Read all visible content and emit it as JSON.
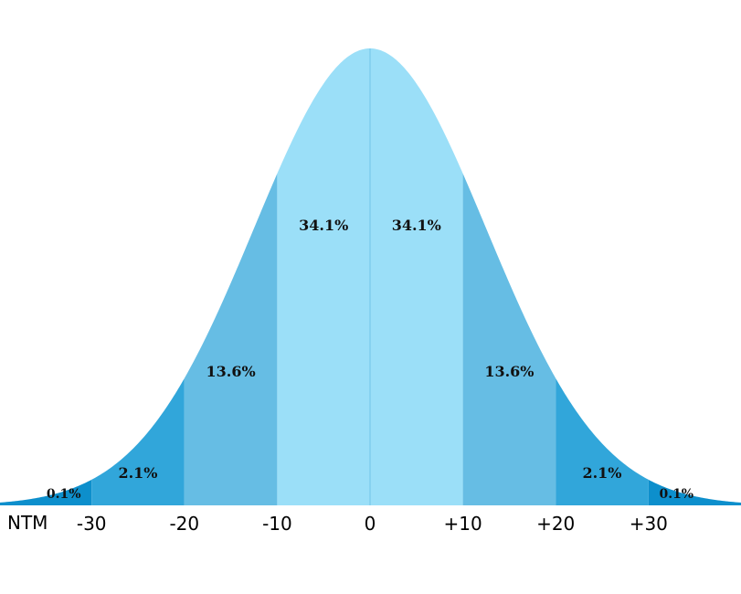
{
  "chart_data": {
    "type": "area",
    "title": "",
    "xlabel": "NTM",
    "ylabel": "",
    "xlim": [
      -40,
      40
    ],
    "grid": false,
    "legend": "none",
    "bands": [
      {
        "from": -40,
        "to": -30,
        "percent_label": "0.1%",
        "color": "#0d8fcc"
      },
      {
        "from": -30,
        "to": -20,
        "percent_label": "2.1%",
        "color": "#31a6da"
      },
      {
        "from": -20,
        "to": -10,
        "percent_label": "13.6%",
        "color": "#66bde4"
      },
      {
        "from": -10,
        "to": 0,
        "percent_label": "34.1%",
        "color": "#9bdff8"
      },
      {
        "from": 0,
        "to": 10,
        "percent_label": "34.1%",
        "color": "#9bdff8"
      },
      {
        "from": 10,
        "to": 20,
        "percent_label": "13.6%",
        "color": "#66bde4"
      },
      {
        "from": 20,
        "to": 30,
        "percent_label": "2.1%",
        "color": "#31a6da"
      },
      {
        "from": 30,
        "to": 40,
        "percent_label": "0.1%",
        "color": "#0d8fcc"
      }
    ],
    "ticks": [
      {
        "value": -30,
        "label": "-30"
      },
      {
        "value": -20,
        "label": "-20"
      },
      {
        "value": -10,
        "label": "-10"
      },
      {
        "value": 0,
        "label": "0"
      },
      {
        "value": 10,
        "label": "+10"
      },
      {
        "value": 20,
        "label": "+20"
      },
      {
        "value": 30,
        "label": "+30"
      }
    ],
    "center_line_color": "#7fcdee"
  }
}
